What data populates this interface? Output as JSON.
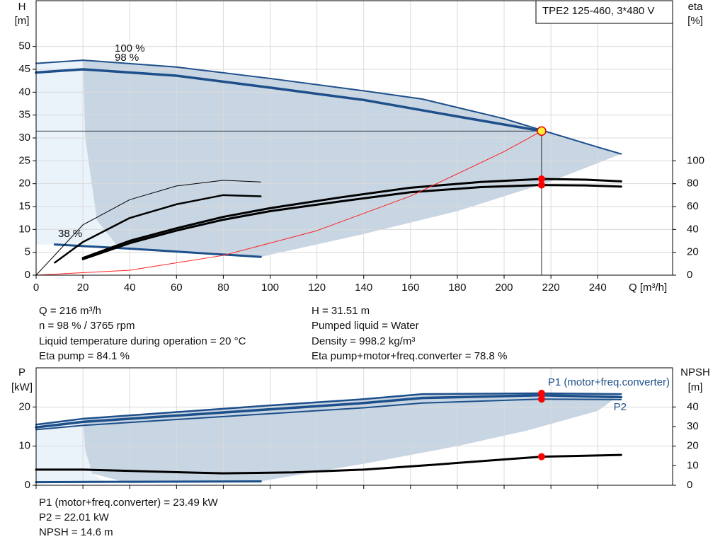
{
  "chart_data": [
    {
      "type": "line",
      "title": "TPE2 125-460, 3*480 V",
      "y_label": [
        "H",
        "[m]"
      ],
      "y2_label": [
        "eta",
        "[%]"
      ],
      "x_label": "Q [m³/h]",
      "xlim": [
        0,
        272
      ],
      "xticks": [
        0,
        20,
        40,
        60,
        80,
        100,
        120,
        140,
        160,
        180,
        200,
        220,
        240
      ],
      "ylim": [
        0,
        60
      ],
      "yticks": [
        0,
        5,
        10,
        15,
        20,
        25,
        30,
        35,
        40,
        45,
        50
      ],
      "y2lim": [
        0,
        240
      ],
      "y2ticks": [
        0,
        20,
        40,
        60,
        80,
        100
      ],
      "grid": true,
      "regions": [
        {
          "color": "#eaf2fa",
          "x": [
            0,
            20,
            21,
            26,
            35,
            8,
            0
          ],
          "y": [
            46.3,
            47,
            30,
            12,
            6.2,
            6.7,
            6.7
          ]
        },
        {
          "color": "#c8d5e3",
          "x": [
            20,
            60,
            100,
            140,
            165,
            200,
            216,
            240,
            250,
            220,
            180,
            140,
            96,
            60,
            35,
            26,
            21
          ],
          "y": [
            47,
            45.5,
            43,
            40.3,
            38.5,
            34.2,
            31.7,
            28,
            26.5,
            20.5,
            14,
            9,
            4,
            5.3,
            6.2,
            12,
            30
          ]
        }
      ],
      "series": [
        {
          "name": "100 %",
          "color": "#1d4f8a",
          "width": 2,
          "x": [
            0,
            20,
            60,
            100,
            140,
            165,
            200,
            216,
            240,
            250
          ],
          "values": [
            46.3,
            47,
            45.5,
            43,
            40.3,
            38.5,
            34.2,
            31.7,
            28,
            26.5
          ]
        },
        {
          "name": "98 %",
          "color": "#1d4f8a",
          "width": 3.5,
          "x": [
            0,
            20,
            60,
            100,
            140,
            180,
            216
          ],
          "values": [
            44.3,
            45,
            43.6,
            41,
            38.3,
            34.7,
            31.51
          ]
        },
        {
          "name": "38 %",
          "color": "#1d4f8a",
          "width": 3,
          "x": [
            8,
            40,
            96
          ],
          "values": [
            6.7,
            5.8,
            4
          ]
        },
        {
          "color": "#000000",
          "width": 3,
          "axis": "y2",
          "x": [
            20,
            40,
            60,
            80,
            100,
            130,
            160,
            190,
            216,
            235,
            250
          ],
          "values": [
            15,
            30,
            41,
            51,
            58.6,
            68,
            76.5,
            81.5,
            84.1,
            83.5,
            82
          ]
        },
        {
          "color": "#000000",
          "width": 3,
          "axis": "y2",
          "x": [
            20,
            40,
            60,
            80,
            100,
            130,
            160,
            190,
            216,
            235,
            250
          ],
          "values": [
            14,
            28,
            39,
            48.5,
            56,
            64.5,
            72.5,
            77,
            78.8,
            78.5,
            77.5
          ]
        },
        {
          "color": "#000000",
          "width": 1,
          "axis": "y2",
          "x": [
            0,
            20,
            40,
            60,
            80,
            96
          ],
          "values": [
            0,
            44,
            66,
            78,
            83,
            81.5
          ]
        },
        {
          "color": "#000000",
          "width": 2.5,
          "axis": "y2",
          "x": [
            8,
            20,
            40,
            60,
            80,
            96
          ],
          "values": [
            11,
            29,
            50,
            62,
            70,
            69
          ]
        },
        {
          "color": "#ff2020",
          "width": 1,
          "x": [
            0,
            40,
            80,
            120,
            160,
            200,
            216
          ],
          "values": [
            0,
            1.08,
            4.32,
            9.73,
            17.29,
            27.02,
            31.51
          ]
        }
      ],
      "duty_point": {
        "x": 216,
        "y": 31.51,
        "y2": [
          84.1,
          78.8
        ]
      }
    },
    {
      "type": "line",
      "y_label": [
        "P",
        "[kW]"
      ],
      "y2_label": [
        "NPSH",
        "[m]"
      ],
      "xlim": [
        0,
        272
      ],
      "xticks": [
        0,
        20,
        40,
        60,
        80,
        100,
        120,
        140,
        160,
        180,
        200,
        220,
        240
      ],
      "ylim": [
        0,
        30
      ],
      "yticks": [
        0,
        10,
        20
      ],
      "y2lim": [
        0,
        60
      ],
      "y2ticks": [
        0,
        10,
        20,
        30,
        40
      ],
      "grid": true,
      "regions": [
        {
          "color": "#eaf2fa",
          "x": [
            0,
            20,
            21,
            24,
            30,
            0
          ],
          "y": [
            15.5,
            17,
            9,
            3,
            0.5,
            0.5
          ]
        },
        {
          "color": "#c8d5e3",
          "x": [
            20,
            60,
            100,
            140,
            165,
            216,
            250,
            240,
            210,
            180,
            140,
            96,
            40,
            24,
            21
          ],
          "y": [
            17,
            18.7,
            20.4,
            22,
            23.3,
            23.49,
            23.3,
            19,
            14,
            10,
            5.5,
            1,
            0.5,
            3,
            9
          ]
        }
      ],
      "series": [
        {
          "name": "P1 (motor+freq.converter)",
          "color": "#1d4f8a",
          "width": 2.5,
          "x": [
            0,
            20,
            60,
            100,
            140,
            165,
            216,
            250
          ],
          "values": [
            15.5,
            17,
            18.7,
            20.4,
            22,
            23.3,
            23.49,
            23.3
          ]
        },
        {
          "color": "#1d4f8a",
          "width": 3.5,
          "x": [
            0,
            20,
            60,
            100,
            140,
            165,
            216,
            250
          ],
          "values": [
            14.8,
            16.2,
            17.8,
            19.4,
            21,
            22.3,
            23,
            22.5
          ]
        },
        {
          "name": "P2",
          "color": "#1d4f8a",
          "width": 2,
          "x": [
            0,
            20,
            60,
            100,
            140,
            165,
            216,
            250
          ],
          "values": [
            14.2,
            15.3,
            16.8,
            18.3,
            19.8,
            21,
            22.01,
            21.9
          ]
        },
        {
          "color": "#1d4f8a",
          "width": 3,
          "x": [
            0,
            96
          ],
          "values": [
            0.8,
            1
          ]
        },
        {
          "color": "#000000",
          "width": 3,
          "axis": "y2",
          "x": [
            0,
            20,
            50,
            80,
            110,
            140,
            170,
            200,
            216,
            250
          ],
          "values": [
            8,
            8,
            7,
            6.1,
            6.6,
            8,
            10.5,
            13.2,
            14.6,
            15.5
          ]
        }
      ],
      "duty_point": {
        "x": 216,
        "y": [
          23.49,
          22.01
        ],
        "y2": [
          14.6
        ]
      }
    }
  ],
  "info_top": {
    "left": [
      "Q = 216 m³/h",
      "n = 98 % / 3765 rpm",
      "Liquid temperature during operation = 20 °C",
      "Eta pump = 84.1 %"
    ],
    "right": [
      "H = 31.51 m",
      "Pumped liquid = Water",
      "Density = 998.2 kg/m³",
      "Eta pump+motor+freq.converter = 78.8 %"
    ]
  },
  "info_bottom": [
    "P1 (motor+freq.converter) = 23.49 kW",
    "P2 = 22.01 kW",
    "NPSH = 14.6 m"
  ]
}
